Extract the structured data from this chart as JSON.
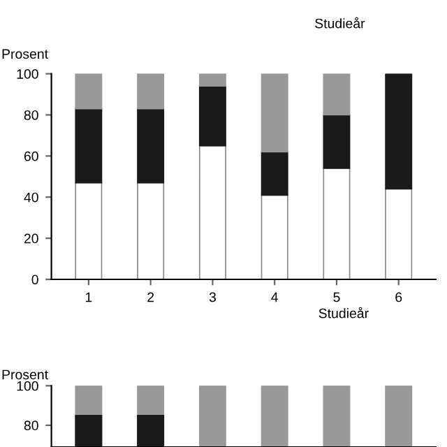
{
  "chart_data": [
    {
      "type": "bar",
      "stacked": true,
      "ylabel": "Prosent",
      "xlabel": "Studieår",
      "annotations": [
        "Studieår"
      ],
      "categories": [
        "1",
        "2",
        "3",
        "4",
        "5",
        "6"
      ],
      "series": [
        {
          "color": "#ffffff",
          "values": [
            47,
            47,
            65,
            41,
            54,
            44
          ]
        },
        {
          "color": "#1a1a1a",
          "values": [
            36,
            36,
            29,
            21,
            26,
            56
          ]
        },
        {
          "color": "#999999",
          "values": [
            17,
            17,
            6,
            38,
            20,
            0
          ]
        }
      ],
      "ylim": [
        0,
        100
      ],
      "yticks": [
        0,
        20,
        40,
        60,
        80,
        100
      ],
      "grid": false,
      "legend": false
    },
    {
      "type": "bar",
      "ylabel": "Prosent",
      "categories": [
        null,
        null,
        null,
        null,
        null,
        null
      ],
      "series": [
        {
          "color": "#999999",
          "values": [
            100,
            100,
            100,
            100,
            100,
            100
          ]
        },
        {
          "color": "#1a1a1a",
          "values": [
            85,
            85,
            null,
            null,
            null,
            null
          ]
        }
      ],
      "ylim": [
        69,
        100
      ],
      "yticks": [
        80,
        100
      ],
      "tick_labels": "y",
      "grid": false,
      "legend": false
    }
  ]
}
